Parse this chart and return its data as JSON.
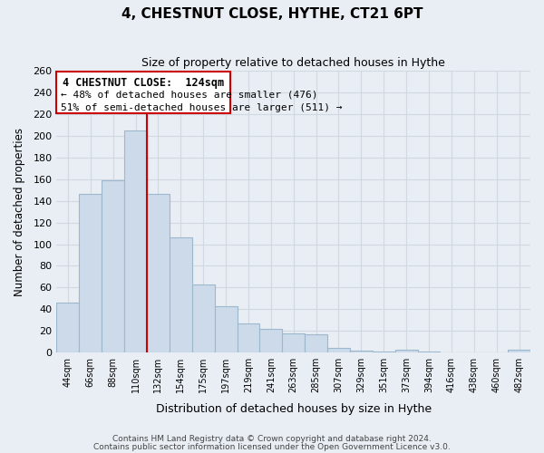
{
  "title": "4, CHESTNUT CLOSE, HYTHE, CT21 6PT",
  "subtitle": "Size of property relative to detached houses in Hythe",
  "xlabel": "Distribution of detached houses by size in Hythe",
  "ylabel": "Number of detached properties",
  "bar_labels": [
    "44sqm",
    "66sqm",
    "88sqm",
    "110sqm",
    "132sqm",
    "154sqm",
    "175sqm",
    "197sqm",
    "219sqm",
    "241sqm",
    "263sqm",
    "285sqm",
    "307sqm",
    "329sqm",
    "351sqm",
    "373sqm",
    "394sqm",
    "416sqm",
    "438sqm",
    "460sqm",
    "482sqm"
  ],
  "bar_values": [
    46,
    146,
    159,
    205,
    146,
    106,
    63,
    43,
    27,
    22,
    18,
    17,
    4,
    2,
    1,
    3,
    1,
    0,
    0,
    0,
    3
  ],
  "bar_color": "#ccdaea",
  "bar_edge_color": "#9db8cc",
  "marker_index": 4,
  "marker_color": "#cc0000",
  "ylim": [
    0,
    260
  ],
  "yticks": [
    0,
    20,
    40,
    60,
    80,
    100,
    120,
    140,
    160,
    180,
    200,
    220,
    240,
    260
  ],
  "annotation_title": "4 CHESTNUT CLOSE:  124sqm",
  "annotation_line1": "← 48% of detached houses are smaller (476)",
  "annotation_line2": "51% of semi-detached houses are larger (511) →",
  "annotation_box_color": "#ffffff",
  "annotation_box_edge": "#cc0000",
  "footer_line1": "Contains HM Land Registry data © Crown copyright and database right 2024.",
  "footer_line2": "Contains public sector information licensed under the Open Government Licence v3.0.",
  "bg_color": "#e8eef4",
  "grid_color": "#d0d8e0",
  "plot_bg_color": "#e8eef4"
}
